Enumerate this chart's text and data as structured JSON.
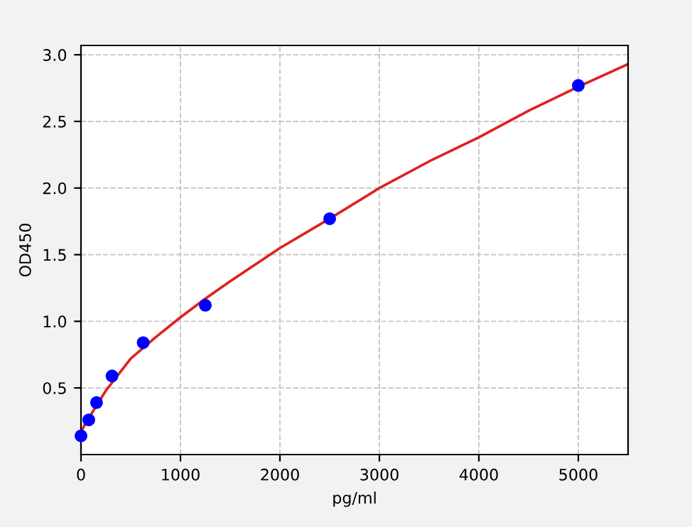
{
  "chart_data": {
    "type": "scatter",
    "xlabel": "pg/ml",
    "ylabel": "OD450",
    "series": [
      {
        "marker": "circle",
        "color": "#0000ff",
        "x": [
          0,
          78,
          156,
          312,
          625,
          1250,
          2500,
          5000
        ],
        "values": [
          0.14,
          0.26,
          0.39,
          0.59,
          0.84,
          1.12,
          1.77,
          2.77
        ]
      },
      {
        "type": "line",
        "color": "#e02020",
        "x": [
          0,
          50,
          100,
          175,
          250,
          375,
          500,
          750,
          1000,
          1250,
          1500,
          2000,
          2500,
          3000,
          3500,
          4000,
          4500,
          5000,
          5500
        ],
        "values": [
          0.17,
          0.24,
          0.3,
          0.39,
          0.48,
          0.6,
          0.72,
          0.88,
          1.03,
          1.17,
          1.3,
          1.55,
          1.77,
          2.0,
          2.2,
          2.38,
          2.58,
          2.76,
          2.93
        ]
      }
    ],
    "xlim": [
      0,
      5500
    ],
    "xticks": [
      0,
      1000,
      2000,
      3000,
      4000,
      5000
    ],
    "ylim": [
      0,
      3.07
    ],
    "yticks": [
      {
        "value": 0.5,
        "label": "0.5"
      },
      {
        "value": 1.0,
        "label": "1.0"
      },
      {
        "value": 1.5,
        "label": "1.5"
      },
      {
        "value": 2.0,
        "label": "2.0"
      },
      {
        "value": 2.5,
        "label": "2.5"
      },
      {
        "value": 3.0,
        "label": "3.0"
      }
    ],
    "grid": true
  }
}
